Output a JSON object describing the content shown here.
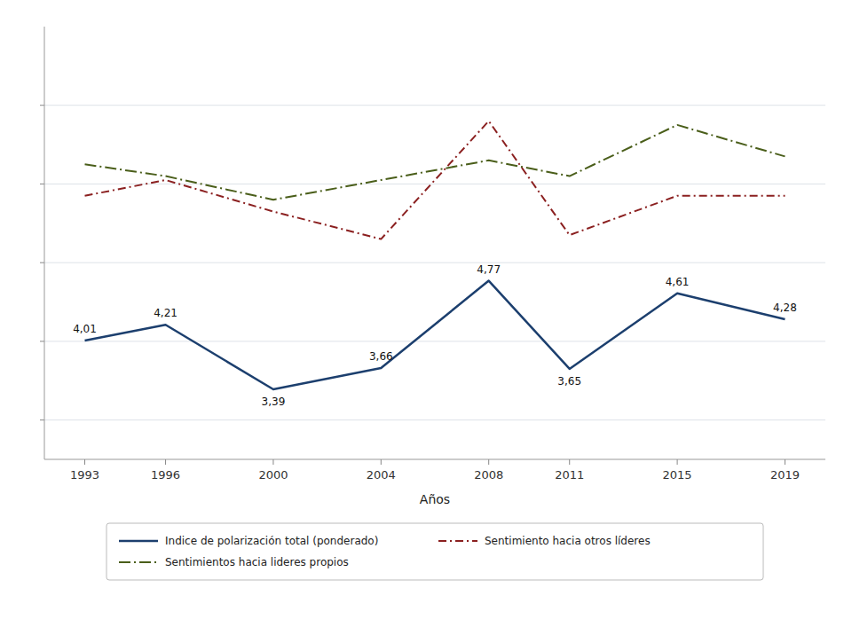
{
  "chart_data": {
    "type": "line",
    "x": [
      1993,
      1996,
      2000,
      2004,
      2008,
      2011,
      2015,
      2019
    ],
    "xlim": [
      1991.5,
      2020.5
    ],
    "xticks": [
      1993,
      1996,
      2000,
      2004,
      2008,
      2011,
      2015,
      2019
    ],
    "ylim": [
      2.5,
      8.0
    ],
    "yticks": [
      3.0,
      4.0,
      5.0,
      6.0,
      7.0
    ],
    "tick_labels": "x",
    "grid": true,
    "legend": "bottom",
    "data_labels": true,
    "x_label": "Años",
    "series": [
      {
        "name": "Indice de polarización total (ponderado)",
        "color": "#1c3f6e",
        "line_style": "solid",
        "values": [
          4.01,
          4.21,
          3.39,
          3.66,
          4.77,
          3.65,
          4.61,
          4.28
        ],
        "value_labels": [
          "4,01",
          "4,21",
          "3,39",
          "3,66",
          "4,77",
          "3,65",
          "4,61",
          "4,28"
        ]
      },
      {
        "name": "Sentimiento hacia otros líderes",
        "color": "#8b2020",
        "line_style": "dashdot",
        "values": [
          5.85,
          6.05,
          5.65,
          5.3,
          6.8,
          5.35,
          5.85,
          5.85
        ]
      },
      {
        "name": "Sentimientos hacia lideres propios",
        "color": "#4a5e1a",
        "line_style": "longdashdot",
        "values": [
          6.25,
          6.1,
          5.8,
          6.05,
          6.3,
          6.1,
          6.75,
          6.35
        ]
      }
    ]
  }
}
